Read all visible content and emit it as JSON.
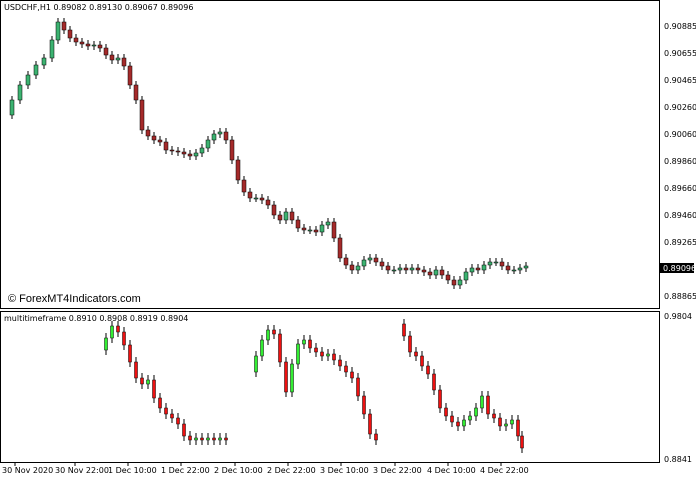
{
  "main_panel": {
    "header": "USDCHF,H1  0.89082 0.89130 0.89067 0.89096",
    "watermark": "© ForexMT4Indicators.com",
    "price_axis": [
      "0.90885",
      "0.90655",
      "0.90465",
      "0.90260",
      "0.90060",
      "0.89860",
      "0.89660",
      "0.89460",
      "0.89265",
      "0.88865"
    ],
    "current_price": "0.89096"
  },
  "sub_panel": {
    "header": "multitimeframe 0.8910 0.8908 0.8919 0.8904",
    "axis": [
      "0.9804",
      "0.8841"
    ]
  },
  "time_axis": [
    "30 Nov 2020",
    "30 Nov 22:00",
    "1 Dec 10:00",
    "1 Dec 22:00",
    "2 Dec 10:00",
    "2 Dec 22:00",
    "3 Dec 10:00",
    "3 Dec 22:00",
    "4 Dec 10:00",
    "4 Dec 22:00"
  ],
  "colors": {
    "bull": "#3cb371",
    "bear": "#a52a2a",
    "sub_bull": "#33ee33",
    "sub_bear": "#ee1111",
    "price_tag": "#000000"
  }
}
